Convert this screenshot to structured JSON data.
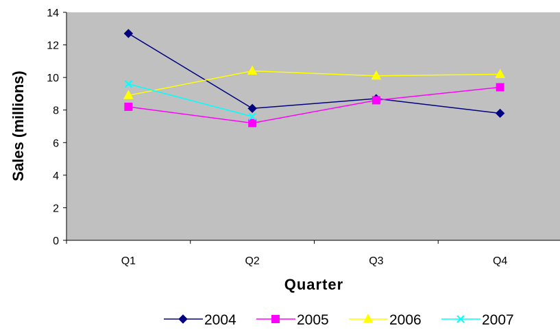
{
  "chart_data": {
    "type": "line",
    "title": "",
    "xlabel": "Quarter",
    "ylabel": "Sales (millions)",
    "ylim": [
      0,
      14
    ],
    "ytick_step": 2,
    "grid": false,
    "plot_background": "#c0c0c0",
    "legend_position": "bottom",
    "categories": [
      "Q1",
      "Q2",
      "Q3",
      "Q4"
    ],
    "series": [
      {
        "name": "2004",
        "values": [
          12.7,
          8.1,
          8.7,
          7.8
        ],
        "color": "#000080",
        "marker": "diamond"
      },
      {
        "name": "2005",
        "values": [
          8.2,
          7.2,
          8.6,
          9.4
        ],
        "color": "#ff00ff",
        "marker": "square"
      },
      {
        "name": "2006",
        "values": [
          8.9,
          10.4,
          10.1,
          10.2
        ],
        "color": "#ffff00",
        "marker": "triangle"
      },
      {
        "name": "2007",
        "values": [
          9.6,
          7.6,
          null,
          null
        ],
        "color": "#00ffff",
        "marker": "x"
      }
    ]
  }
}
